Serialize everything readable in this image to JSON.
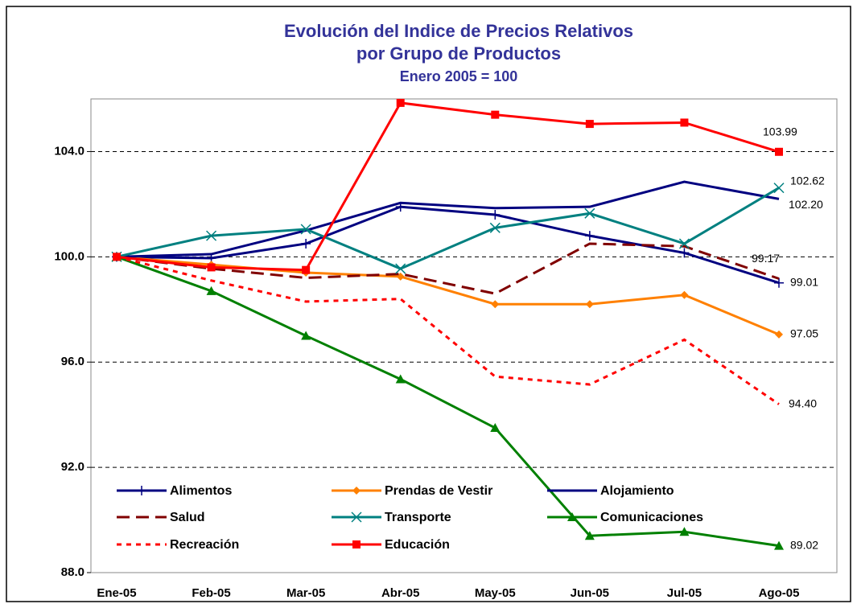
{
  "chart_data": {
    "type": "line",
    "title": [
      "Evolución del Indice de Precios Relativos",
      "por Grupo de Productos"
    ],
    "subtitle": "Enero 2005 = 100",
    "categories": [
      "Ene-05",
      "Feb-05",
      "Mar-05",
      "Abr-05",
      "May-05",
      "Jun-05",
      "Jul-05",
      "Ago-05"
    ],
    "ylim": [
      88,
      106
    ],
    "yticks": [
      {
        "value": 88,
        "label": "88.0"
      },
      {
        "value": 92,
        "label": "92.0"
      },
      {
        "value": 96,
        "label": "96.0"
      },
      {
        "value": 100,
        "label": "100.0"
      },
      {
        "value": 104,
        "label": "104.0"
      }
    ],
    "grid": true,
    "legend": "bottom-left",
    "series": [
      {
        "name": "Alimentos",
        "color": "#000080",
        "marker": "plus",
        "dash": "solid",
        "values": [
          100,
          99.95,
          100.5,
          101.9,
          101.6,
          100.8,
          100.15,
          99.01
        ],
        "value_labels": [
          null,
          null,
          null,
          null,
          null,
          null,
          null,
          "99.01"
        ]
      },
      {
        "name": "Prendas de Vestir",
        "color": "#ff8000",
        "marker": "diamond",
        "dash": "solid",
        "values": [
          100,
          99.7,
          99.4,
          99.25,
          98.2,
          98.2,
          98.55,
          97.05
        ],
        "value_labels": [
          null,
          null,
          null,
          null,
          null,
          null,
          null,
          "97.05"
        ]
      },
      {
        "name": "Alojamiento",
        "color": "#000080",
        "marker": "none",
        "dash": "solid",
        "values": [
          100,
          100.1,
          101.0,
          102.05,
          101.85,
          101.9,
          102.85,
          102.2
        ],
        "value_labels": [
          null,
          null,
          null,
          null,
          null,
          null,
          null,
          "102.20"
        ]
      },
      {
        "name": "Salud",
        "color": "#800000",
        "marker": "none",
        "dash": "dashed",
        "values": [
          100,
          99.55,
          99.2,
          99.35,
          98.6,
          100.5,
          100.4,
          99.17
        ],
        "value_labels": [
          null,
          null,
          null,
          null,
          null,
          null,
          null,
          "99.17"
        ]
      },
      {
        "name": "Transporte",
        "color": "#008080",
        "marker": "cross",
        "dash": "solid",
        "values": [
          100,
          100.8,
          101.05,
          99.55,
          101.1,
          101.65,
          100.5,
          102.62
        ],
        "value_labels": [
          null,
          null,
          null,
          null,
          null,
          null,
          null,
          "102.62"
        ]
      },
      {
        "name": "Comunicaciones",
        "color": "#008000",
        "marker": "triangle",
        "dash": "solid",
        "values": [
          100,
          98.7,
          97.0,
          95.35,
          93.5,
          89.4,
          89.55,
          89.02
        ],
        "value_labels": [
          null,
          null,
          null,
          null,
          null,
          null,
          null,
          "89.02"
        ]
      },
      {
        "name": "Recreación",
        "color": "#ff0000",
        "marker": "none",
        "dash": "dotted",
        "values": [
          100,
          99.1,
          98.3,
          98.4,
          95.45,
          95.15,
          96.85,
          94.4
        ],
        "value_labels": [
          null,
          null,
          null,
          null,
          null,
          null,
          null,
          "94.40"
        ]
      },
      {
        "name": "Educación",
        "color": "#ff0000",
        "marker": "square",
        "dash": "solid",
        "values": [
          100,
          99.6,
          99.5,
          105.85,
          105.4,
          105.05,
          105.1,
          103.99
        ],
        "value_labels": [
          null,
          null,
          null,
          null,
          null,
          null,
          null,
          "103.99"
        ]
      }
    ]
  }
}
